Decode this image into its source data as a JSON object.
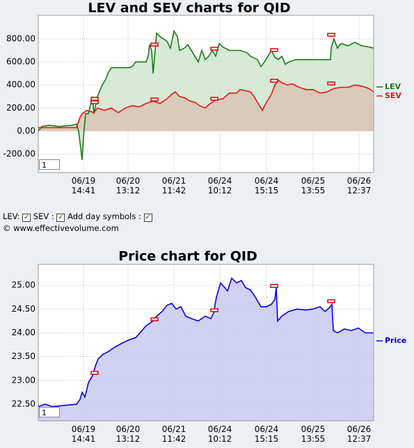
{
  "chart_data": [
    {
      "type": "line",
      "title": "LEV and SEV charts for QID",
      "xlim": [
        0,
        482
      ],
      "ylim": [
        -360,
        1005
      ],
      "xticks": [
        {
          "value": 65,
          "label": "06/19\n14:41"
        },
        {
          "value": 129,
          "label": "06/20\n13:12"
        },
        {
          "value": 195,
          "label": "06/21\n11:42"
        },
        {
          "value": 261,
          "label": "06/24\n10:12"
        },
        {
          "value": 328,
          "label": "06/24\n15:15"
        },
        {
          "value": 395,
          "label": "06/25\n13:55"
        },
        {
          "value": 461,
          "label": "06/26\n12:37"
        }
      ],
      "yticks": [
        {
          "value": -200,
          "label": "-200.00"
        },
        {
          "value": 0,
          "label": "0.00"
        },
        {
          "value": 200,
          "label": "200.00"
        },
        {
          "value": 400,
          "label": "400.00"
        },
        {
          "value": 600,
          "label": "600.00"
        },
        {
          "value": 800,
          "label": "800.00"
        }
      ],
      "grid": true,
      "series": [
        {
          "name": "LEV",
          "color": "#1a7a1a",
          "fill": "#cfe6cf",
          "x": [
            0,
            5,
            15,
            30,
            48,
            55,
            58,
            61,
            63,
            65,
            68,
            72,
            76,
            78,
            80,
            85,
            92,
            97,
            100,
            105,
            115,
            130,
            135,
            140,
            155,
            158,
            160,
            163,
            165,
            168,
            170,
            175,
            180,
            185,
            190,
            195,
            200,
            203,
            210,
            215,
            225,
            230,
            235,
            240,
            245,
            250,
            255,
            260,
            265,
            275,
            290,
            300,
            305,
            315,
            320,
            325,
            330,
            335,
            340,
            345,
            350,
            355,
            360,
            370,
            400,
            420,
            421,
            425,
            430,
            435,
            445,
            455,
            465,
            475,
            482
          ],
          "values": [
            0,
            40,
            50,
            40,
            50,
            60,
            0,
            -150,
            -250,
            -50,
            150,
            150,
            250,
            300,
            150,
            300,
            400,
            450,
            500,
            550,
            550,
            550,
            560,
            600,
            600,
            650,
            750,
            700,
            500,
            700,
            850,
            820,
            800,
            780,
            720,
            870,
            820,
            700,
            720,
            750,
            650,
            600,
            700,
            620,
            650,
            700,
            650,
            760,
            730,
            700,
            700,
            680,
            650,
            620,
            560,
            600,
            650,
            700,
            640,
            620,
            650,
            580,
            600,
            620,
            620,
            620,
            720,
            800,
            720,
            760,
            740,
            770,
            740,
            730,
            720
          ]
        },
        {
          "name": "SEV",
          "color": "#ee1111",
          "fill": "#d8c6b4",
          "x": [
            0,
            30,
            55,
            60,
            63,
            70,
            80,
            85,
            95,
            105,
            115,
            125,
            135,
            145,
            155,
            165,
            175,
            185,
            192,
            197,
            203,
            210,
            218,
            225,
            232,
            240,
            245,
            255,
            265,
            275,
            285,
            290,
            298,
            305,
            310,
            318,
            322,
            328,
            335,
            340,
            345,
            350,
            358,
            365,
            375,
            385,
            395,
            405,
            415,
            425,
            435,
            445,
            455,
            465,
            475,
            482
          ],
          "values": [
            30,
            30,
            30,
            120,
            150,
            180,
            160,
            200,
            180,
            200,
            160,
            200,
            220,
            210,
            240,
            260,
            240,
            280,
            320,
            340,
            300,
            290,
            260,
            250,
            220,
            200,
            230,
            270,
            280,
            330,
            330,
            360,
            350,
            340,
            300,
            220,
            180,
            250,
            320,
            400,
            440,
            420,
            400,
            410,
            380,
            360,
            360,
            330,
            340,
            370,
            380,
            380,
            400,
            390,
            370,
            340
          ]
        }
      ]
    },
    {
      "type": "line",
      "title": "Price chart for QID",
      "xlim": [
        0,
        482
      ],
      "ylim": [
        22.15,
        25.44
      ],
      "xticks": [
        {
          "value": 65,
          "label": "06/19\n14:41"
        },
        {
          "value": 129,
          "label": "06/20\n13:12"
        },
        {
          "value": 195,
          "label": "06/21\n11:42"
        },
        {
          "value": 261,
          "label": "06/24\n10:12"
        },
        {
          "value": 328,
          "label": "06/24\n15:15"
        },
        {
          "value": 395,
          "label": "06/25\n13:55"
        },
        {
          "value": 461,
          "label": "06/26\n12:37"
        }
      ],
      "yticks": [
        {
          "value": 22.5,
          "label": "22.50"
        },
        {
          "value": 23,
          "label": "23.00"
        },
        {
          "value": 23.5,
          "label": "23.50"
        },
        {
          "value": 24,
          "label": "24.00"
        },
        {
          "value": 24.5,
          "label": "24.50"
        },
        {
          "value": 25,
          "label": "25.00"
        }
      ],
      "grid": true,
      "series": [
        {
          "name": "Price",
          "color": "#0000ee",
          "fill": "#c9c9f2",
          "x": [
            0,
            10,
            20,
            35,
            55,
            60,
            63,
            67,
            72,
            78,
            82,
            86,
            93,
            100,
            110,
            120,
            130,
            140,
            145,
            155,
            165,
            170,
            178,
            185,
            192,
            198,
            205,
            212,
            220,
            230,
            240,
            248,
            252,
            256,
            262,
            268,
            272,
            278,
            285,
            292,
            298,
            305,
            312,
            320,
            328,
            335,
            340,
            342,
            344,
            350,
            360,
            372,
            385,
            395,
            405,
            412,
            418,
            422,
            424,
            430,
            440,
            450,
            460,
            470,
            482
          ],
          "values": [
            22.45,
            22.5,
            22.45,
            22.47,
            22.5,
            22.6,
            22.75,
            22.65,
            22.95,
            23.1,
            23.3,
            23.45,
            23.55,
            23.6,
            23.7,
            23.78,
            23.85,
            23.9,
            23.98,
            24.15,
            24.25,
            24.35,
            24.45,
            24.58,
            24.62,
            24.5,
            24.55,
            24.35,
            24.3,
            24.25,
            24.35,
            24.3,
            24.42,
            24.75,
            25.05,
            24.95,
            24.88,
            25.15,
            25.05,
            25.1,
            24.95,
            24.9,
            24.75,
            24.55,
            24.55,
            24.6,
            24.7,
            24.95,
            24.25,
            24.35,
            24.45,
            24.5,
            24.48,
            24.5,
            24.55,
            24.45,
            24.52,
            24.6,
            24.05,
            24.0,
            24.08,
            24.05,
            24.1,
            24.0,
            24.0
          ]
        }
      ]
    }
  ],
  "inputs": [
    "1",
    "1"
  ],
  "controls": [
    "LEV:",
    "SEV :",
    "Add day symbols :"
  ],
  "footer": "© www.effectivevolume.com"
}
